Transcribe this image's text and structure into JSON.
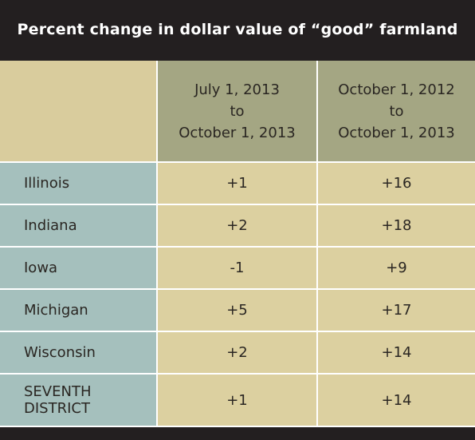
{
  "title": "Percent change in dollar value of “good” farmland",
  "header": {
    "col_a": [
      "July 1, 2013",
      "to",
      "October 1, 2013"
    ],
    "col_b": [
      "October 1, 2012",
      "to",
      "October 1, 2013"
    ]
  },
  "rows": [
    {
      "state": "Illinois",
      "a": "+1",
      "b": "+16"
    },
    {
      "state": "Indiana",
      "a": "+2",
      "b": "+18"
    },
    {
      "state": "Iowa",
      "a": "-1",
      "b": "+9"
    },
    {
      "state": "Michigan",
      "a": "+5",
      "b": "+17"
    },
    {
      "state": "Wisconsin",
      "a": "+2",
      "b": "+14"
    },
    {
      "state": [
        "SEVENTH",
        "DISTRICT"
      ],
      "a": "+1",
      "b": "+14"
    }
  ],
  "colors": {
    "title_bar": "#231f20",
    "header": "#a4a683",
    "state_cell": "#a5c0bd",
    "value_cell": "#dcd0a0",
    "corner": "#d9cc9d"
  }
}
